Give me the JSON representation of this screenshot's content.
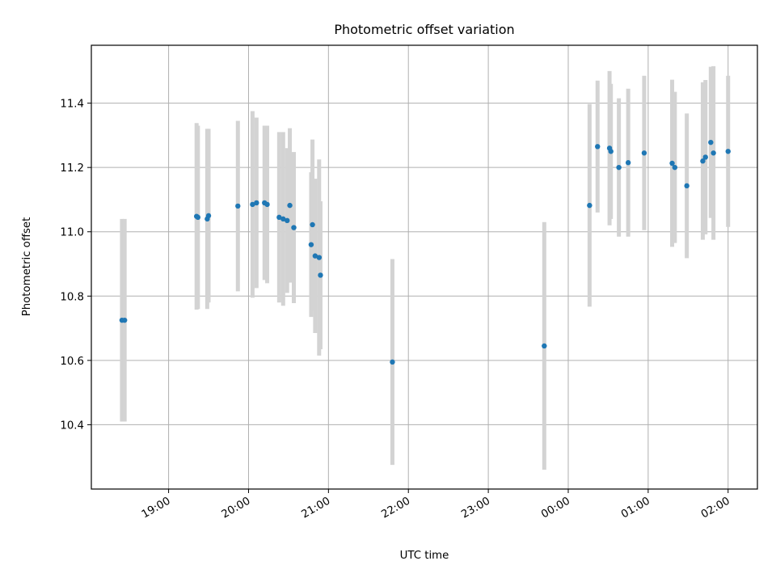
{
  "chart_data": {
    "type": "scatter",
    "title": "Photometric offset variation",
    "xlabel": "UTC time",
    "ylabel": "Photometric offset",
    "grid": true,
    "x_range": [
      "18:02",
      "02:22"
    ],
    "x_ticks": [
      "19:00",
      "20:00",
      "21:00",
      "22:00",
      "23:00",
      "00:00",
      "01:00",
      "02:00"
    ],
    "ylim": [
      10.2,
      11.58
    ],
    "y_ticks": [
      10.4,
      10.6,
      10.8,
      11.0,
      11.2,
      11.4
    ],
    "colors": {
      "point": "#1f77b4",
      "errorbar": "#d3d3d3",
      "grid": "#b0b0b0"
    },
    "points": [
      {
        "t": "18:25",
        "y": 10.725,
        "err": 0.315
      },
      {
        "t": "18:27",
        "y": 10.725,
        "err": 0.315
      },
      {
        "t": "19:21",
        "y": 11.048,
        "err": 0.29
      },
      {
        "t": "19:22",
        "y": 11.045,
        "err": 0.285
      },
      {
        "t": "19:29",
        "y": 11.04,
        "err": 0.28
      },
      {
        "t": "19:30",
        "y": 11.05,
        "err": 0.27
      },
      {
        "t": "19:52",
        "y": 11.08,
        "err": 0.265
      },
      {
        "t": "20:03",
        "y": 11.085,
        "err": 0.29
      },
      {
        "t": "20:06",
        "y": 11.09,
        "err": 0.265
      },
      {
        "t": "20:12",
        "y": 11.09,
        "err": 0.24
      },
      {
        "t": "20:14",
        "y": 11.085,
        "err": 0.245
      },
      {
        "t": "20:23",
        "y": 11.045,
        "err": 0.265
      },
      {
        "t": "20:26",
        "y": 11.04,
        "err": 0.27
      },
      {
        "t": "20:29",
        "y": 11.035,
        "err": 0.225
      },
      {
        "t": "20:31",
        "y": 11.082,
        "err": 0.24
      },
      {
        "t": "20:34",
        "y": 11.013,
        "err": 0.235
      },
      {
        "t": "20:47",
        "y": 10.96,
        "err": 0.225
      },
      {
        "t": "20:48",
        "y": 11.022,
        "err": 0.265
      },
      {
        "t": "20:50",
        "y": 10.925,
        "err": 0.24
      },
      {
        "t": "20:53",
        "y": 10.92,
        "err": 0.305
      },
      {
        "t": "20:54",
        "y": 10.865,
        "err": 0.23
      },
      {
        "t": "21:48",
        "y": 10.595,
        "err": 0.32
      },
      {
        "t": "23:42",
        "y": 10.645,
        "err": 0.385
      },
      {
        "t": "00:16",
        "y": 11.082,
        "err": 0.315
      },
      {
        "t": "00:22",
        "y": 11.265,
        "err": 0.205
      },
      {
        "t": "00:31",
        "y": 11.26,
        "err": 0.24
      },
      {
        "t": "00:32",
        "y": 11.25,
        "err": 0.21
      },
      {
        "t": "00:38",
        "y": 11.2,
        "err": 0.215
      },
      {
        "t": "00:45",
        "y": 11.215,
        "err": 0.23
      },
      {
        "t": "00:57",
        "y": 11.245,
        "err": 0.24
      },
      {
        "t": "01:18",
        "y": 11.213,
        "err": 0.26
      },
      {
        "t": "01:20",
        "y": 11.2,
        "err": 0.235
      },
      {
        "t": "01:29",
        "y": 11.143,
        "err": 0.225
      },
      {
        "t": "01:41",
        "y": 11.22,
        "err": 0.245
      },
      {
        "t": "01:43",
        "y": 11.232,
        "err": 0.24
      },
      {
        "t": "01:47",
        "y": 11.278,
        "err": 0.235
      },
      {
        "t": "01:49",
        "y": 11.245,
        "err": 0.27
      },
      {
        "t": "02:00",
        "y": 11.25,
        "err": 0.235
      }
    ]
  }
}
